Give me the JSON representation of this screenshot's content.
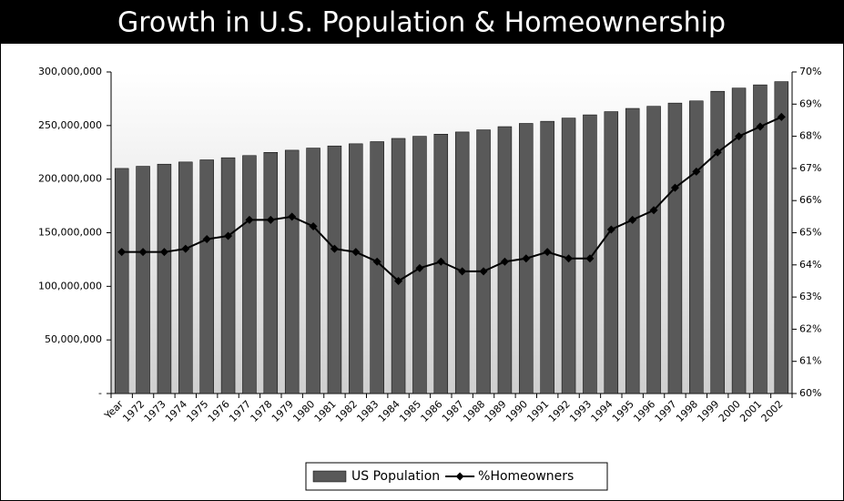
{
  "chart_data": {
    "type": "bar",
    "title": "Growth in U.S. Population & Homeownership",
    "categories": [
      "Year",
      "1972",
      "1973",
      "1974",
      "1975",
      "1976",
      "1977",
      "1978",
      "1979",
      "1980",
      "1981",
      "1982",
      "1983",
      "1984",
      "1985",
      "1986",
      "1987",
      "1988",
      "1989",
      "1990",
      "1991",
      "1992",
      "1993",
      "1994",
      "1995",
      "1996",
      "1997",
      "1998",
      "1999",
      "2000",
      "2001",
      "2002"
    ],
    "series": [
      {
        "name": "US Population",
        "type": "bar",
        "color": "#595959",
        "values": [
          210000000,
          212000000,
          214000000,
          216000000,
          218000000,
          220000000,
          222000000,
          225000000,
          227000000,
          229000000,
          231000000,
          233000000,
          235000000,
          238000000,
          240000000,
          242000000,
          244000000,
          246000000,
          249000000,
          252000000,
          254000000,
          257000000,
          260000000,
          263000000,
          266000000,
          268000000,
          271000000,
          273000000,
          282000000,
          285000000,
          288000000,
          291000000
        ]
      },
      {
        "name": "%Homeowners",
        "type": "line",
        "axis": "y2",
        "color": "#000000",
        "values": [
          64.4,
          64.4,
          64.4,
          64.5,
          64.8,
          64.9,
          65.4,
          65.4,
          65.5,
          65.2,
          64.5,
          64.4,
          64.1,
          63.5,
          63.9,
          64.1,
          63.8,
          63.8,
          64.1,
          64.2,
          64.4,
          64.2,
          64.2,
          65.1,
          65.4,
          65.7,
          66.4,
          66.9,
          67.5,
          68.0,
          68.3,
          68.6
        ]
      }
    ],
    "ylim": [
      0,
      300000000
    ],
    "yticks": [
      {
        "value": 0,
        "label": "-"
      },
      {
        "value": 50000000,
        "label": "50,000,000"
      },
      {
        "value": 100000000,
        "label": "100,000,000"
      },
      {
        "value": 150000000,
        "label": "150,000,000"
      },
      {
        "value": 200000000,
        "label": "200,000,000"
      },
      {
        "value": 250000000,
        "label": "250,000,000"
      },
      {
        "value": 300000000,
        "label": "300,000,000"
      }
    ],
    "y2lim": [
      60,
      70
    ],
    "y2ticks": [
      {
        "value": 60,
        "label": "60%"
      },
      {
        "value": 61,
        "label": "61%"
      },
      {
        "value": 62,
        "label": "62%"
      },
      {
        "value": 63,
        "label": "63%"
      },
      {
        "value": 64,
        "label": "64%"
      },
      {
        "value": 65,
        "label": "65%"
      },
      {
        "value": 66,
        "label": "66%"
      },
      {
        "value": 67,
        "label": "67%"
      },
      {
        "value": 68,
        "label": "68%"
      },
      {
        "value": 69,
        "label": "69%"
      },
      {
        "value": 70,
        "label": "70%"
      }
    ],
    "legend": "bottom"
  }
}
